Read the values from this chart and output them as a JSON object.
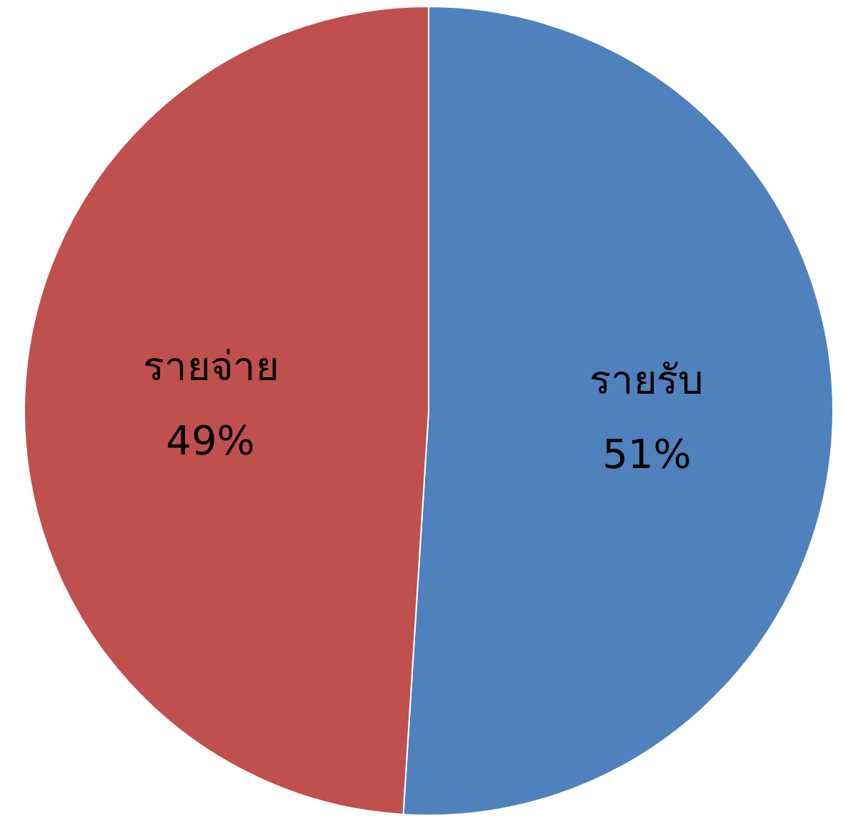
{
  "chart_data": {
    "type": "pie",
    "categories": [
      "รายรับ",
      "รายจ่าย"
    ],
    "values": [
      51,
      49
    ],
    "colors": [
      "#4f81bd",
      "#c0504d"
    ],
    "value_labels": [
      "51%",
      "49%"
    ],
    "legend": false
  }
}
